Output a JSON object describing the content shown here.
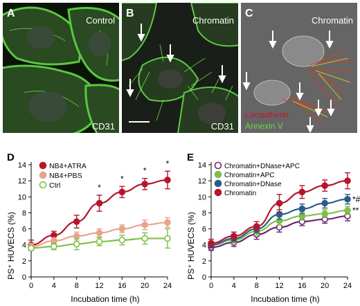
{
  "panels": {
    "A": {
      "letter": "A",
      "label_top": "Control",
      "label_bottom": "CD31"
    },
    "B": {
      "letter": "B",
      "label_top": "Chromatin",
      "label_bottom": "CD31"
    },
    "C": {
      "letter": "C",
      "label_top": "Chromatin",
      "legend_red": "Lactadherin",
      "legend_green": "Annexin V"
    }
  },
  "colors": {
    "cell_green": "#4fc23a",
    "red_series": "#b5162b",
    "pink_series": "#e7a48c",
    "green_series": "#7ec047",
    "purple_series": "#6b2470",
    "blue_series": "#2c5d8a"
  },
  "chart_data": [
    {
      "panel": "D",
      "type": "line",
      "xlabel": "Incubation time (h)",
      "ylabel": "PS⁺ HUVECS (%)",
      "x": [
        0,
        4,
        8,
        12,
        16,
        20,
        24
      ],
      "xlim": [
        0,
        24
      ],
      "ylim": [
        0,
        14
      ],
      "xticks": [
        0,
        4,
        8,
        12,
        16,
        20,
        24
      ],
      "yticks": [
        0,
        2,
        4,
        6,
        8,
        10,
        12,
        14
      ],
      "legend_position": "top-left",
      "series": [
        {
          "name": "NB4+ATRA",
          "values": [
            4.0,
            5.2,
            6.9,
            9.2,
            10.6,
            11.6,
            12.1
          ],
          "err": [
            0.6,
            0.5,
            0.8,
            1.0,
            0.7,
            0.7,
            1.1
          ],
          "marker": "filled",
          "color_key": "red_series"
        },
        {
          "name": "NB4+PBS",
          "values": [
            3.8,
            4.5,
            5.1,
            5.5,
            6.0,
            6.5,
            6.8
          ],
          "err": [
            0.4,
            0.4,
            0.5,
            0.5,
            0.5,
            0.6,
            0.6
          ],
          "marker": "filled",
          "color_key": "pink_series"
        },
        {
          "name": "Ctrl",
          "values": [
            3.6,
            3.8,
            4.1,
            4.4,
            4.6,
            4.8,
            4.8
          ],
          "err": [
            0.3,
            0.4,
            0.7,
            0.5,
            0.6,
            0.7,
            1.2
          ],
          "marker": "open",
          "color_key": "green_series"
        }
      ],
      "annotations": [
        {
          "x": 12,
          "y": 10.8,
          "text": "*"
        },
        {
          "x": 16,
          "y": 11.9,
          "text": "*"
        },
        {
          "x": 20,
          "y": 12.9,
          "text": "*"
        },
        {
          "x": 24,
          "y": 13.8,
          "text": "*"
        }
      ]
    },
    {
      "panel": "E",
      "type": "line",
      "xlabel": "Incubation time (h)",
      "ylabel": "PS⁺ HUVECS (%)",
      "x": [
        0,
        4,
        8,
        12,
        16,
        20,
        24
      ],
      "xlim": [
        0,
        24
      ],
      "ylim": [
        0,
        14
      ],
      "xticks": [
        0,
        4,
        8,
        12,
        16,
        20,
        24
      ],
      "yticks": [
        0,
        2,
        4,
        6,
        8,
        10,
        12,
        14
      ],
      "legend_position": "top-left",
      "series": [
        {
          "name": "Chromatin+DNase+APC",
          "values": [
            3.7,
            4.3,
            5.3,
            6.2,
            6.9,
            7.2,
            7.6
          ],
          "err": [
            0.4,
            0.5,
            0.6,
            0.6,
            0.5,
            0.5,
            0.6
          ],
          "marker": "open",
          "color_key": "purple_series"
        },
        {
          "name": "Chromatin+APC",
          "values": [
            4.0,
            4.6,
            5.7,
            7.0,
            7.6,
            7.9,
            8.3
          ],
          "err": [
            0.4,
            0.4,
            0.5,
            0.5,
            0.5,
            0.5,
            0.5
          ],
          "marker": "filled",
          "color_key": "green_series"
        },
        {
          "name": "Chromatin+DNase",
          "values": [
            4.0,
            4.8,
            6.0,
            7.8,
            8.5,
            9.2,
            9.7
          ],
          "err": [
            0.4,
            0.4,
            0.5,
            0.6,
            0.6,
            0.6,
            0.6
          ],
          "marker": "filled",
          "color_key": "blue_series"
        },
        {
          "name": "Chromatin",
          "values": [
            4.2,
            5.1,
            6.3,
            9.2,
            10.6,
            11.4,
            12.0
          ],
          "err": [
            0.5,
            0.5,
            0.6,
            1.1,
            0.8,
            0.7,
            1.0
          ],
          "marker": "filled",
          "color_key": "red_series"
        }
      ],
      "annotations": [
        {
          "x": 24,
          "y": 9.7,
          "text": "*#"
        },
        {
          "x": 24,
          "y": 8.3,
          "text": "**"
        }
      ]
    }
  ],
  "plot_letters": {
    "D": "D",
    "E": "E"
  }
}
